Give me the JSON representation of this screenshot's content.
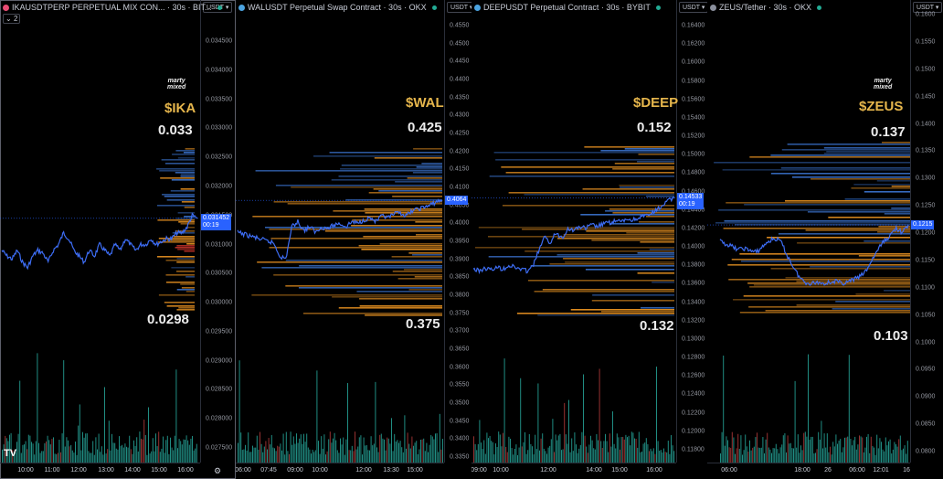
{
  "panels": [
    {
      "title": "IKAUSDTPERP PERPETUAL MIX CON... · 30s · BIT...",
      "icon_color": "#e94b73",
      "unit": "USDT",
      "interval_badge": "2",
      "ticker": "$IKA",
      "high": "0.033",
      "low": "0.0298",
      "price_tag": "0.031452",
      "countdown": "00:19",
      "ticks": [
        "0.034500",
        "0.034000",
        "0.033500",
        "0.033000",
        "0.032500",
        "0.032000",
        "0.031500",
        "0.031000",
        "0.030500",
        "0.030000",
        "0.029500",
        "0.029000",
        "0.028500",
        "0.028000",
        "0.027500"
      ],
      "times": [
        "10:00",
        "11:00",
        "12:00",
        "13:00",
        "14:00",
        "15:00",
        "16:00"
      ],
      "line": [
        0.0309,
        0.0308,
        0.03075,
        0.0309,
        0.0307,
        0.0306,
        0.0308,
        0.0309,
        0.03085,
        0.0307,
        0.0309,
        0.031,
        0.0312,
        0.0311,
        0.0309,
        0.0308,
        0.0307,
        0.0309,
        0.0308,
        0.031,
        0.0309,
        0.0308,
        0.031,
        0.0309,
        0.0311,
        0.031,
        0.0309,
        0.031,
        0.031,
        0.0311,
        0.031,
        0.03105,
        0.0311,
        0.0311,
        0.0312,
        0.0312,
        0.0313,
        0.0315,
        0.03145
      ]
    },
    {
      "title": "WALUSDT Perpetual Swap Contract · 30s · OKX",
      "icon_color": "#4ba3e0",
      "unit": "USDT",
      "ticker": "$WAL",
      "high": "0.425",
      "low": "0.375",
      "price_tag": "0.4064",
      "countdown": "",
      "ticks": [
        "0.4550",
        "0.4500",
        "0.4450",
        "0.4400",
        "0.4350",
        "0.4300",
        "0.4250",
        "0.4200",
        "0.4150",
        "0.4100",
        "0.4050",
        "0.4000",
        "0.3950",
        "0.3900",
        "0.3850",
        "0.3800",
        "0.3750",
        "0.3700",
        "0.3650",
        "0.3600",
        "0.3550",
        "0.3500",
        "0.3450",
        "0.3400",
        "0.3350"
      ],
      "times": [
        "06:00",
        "07:45",
        "09:00",
        "10:00",
        "12:00",
        "13:30",
        "15:00"
      ],
      "line": [
        0.3975,
        0.397,
        0.3965,
        0.396,
        0.3955,
        0.395,
        0.3945,
        0.391,
        0.39,
        0.399,
        0.4005,
        0.398,
        0.399,
        0.3975,
        0.399,
        0.3985,
        0.3995,
        0.4,
        0.399,
        0.4005,
        0.4,
        0.401,
        0.4015,
        0.4005,
        0.402,
        0.4015,
        0.4025,
        0.403,
        0.402,
        0.4035,
        0.404,
        0.4045,
        0.405,
        0.406,
        0.4064
      ]
    },
    {
      "title": "DEEPUSDT Perpetual Contract · 30s · BYBIT",
      "icon_color": "#4ba3e0",
      "unit": "USDT",
      "ticker": "$DEEP",
      "high": "0.152",
      "low": "0.132",
      "price_tag": "0.14533",
      "countdown": "00:19",
      "ticks": [
        "0.16400",
        "0.16200",
        "0.16000",
        "0.15800",
        "0.15600",
        "0.15400",
        "0.15200",
        "0.15000",
        "0.14800",
        "0.14600",
        "0.14400",
        "0.14200",
        "0.14000",
        "0.13800",
        "0.13600",
        "0.13400",
        "0.13200",
        "0.13000",
        "0.12800",
        "0.12600",
        "0.12400",
        "0.12200",
        "0.12000",
        "0.11800"
      ],
      "times": [
        "09:00",
        "10:00",
        "12:00",
        "14:00",
        "15:00",
        "16:00"
      ],
      "line": [
        0.1376,
        0.1374,
        0.1377,
        0.1375,
        0.1378,
        0.1376,
        0.138,
        0.1378,
        0.1376,
        0.1374,
        0.1378,
        0.1395,
        0.141,
        0.1405,
        0.1415,
        0.141,
        0.142,
        0.1418,
        0.1422,
        0.142,
        0.1424,
        0.1422,
        0.1425,
        0.1426,
        0.1428,
        0.1427,
        0.143,
        0.1429,
        0.1432,
        0.1433,
        0.1435,
        0.144,
        0.1445,
        0.145,
        0.14533
      ]
    },
    {
      "title": "ZEUS/Tether · 30s · OKX",
      "icon_color": "#8a8f9c",
      "unit": "USDT",
      "ticker": "$ZEUS",
      "high": "0.137",
      "low": "0.103",
      "price_tag": "0.1215",
      "countdown": "",
      "ticks": [
        "0.1600",
        "0.1550",
        "0.1500",
        "0.1450",
        "0.1400",
        "0.1350",
        "0.1300",
        "0.1250",
        "0.1200",
        "0.1150",
        "0.1100",
        "0.1050",
        "0.1000",
        "0.0950",
        "0.0900",
        "0.0850",
        "0.0800"
      ],
      "times": [
        "06:00",
        "18:00",
        "26",
        "06:00",
        "12:01",
        "16"
      ],
      "line": [
        0.1185,
        0.118,
        0.1175,
        0.117,
        0.1172,
        0.1168,
        0.1165,
        0.1175,
        0.1185,
        0.119,
        0.1185,
        0.116,
        0.114,
        0.112,
        0.111,
        0.1108,
        0.111,
        0.1108,
        0.111,
        0.1112,
        0.1108,
        0.111,
        0.1115,
        0.112,
        0.113,
        0.115,
        0.117,
        0.1185,
        0.1195,
        0.121,
        0.12,
        0.1215
      ]
    }
  ],
  "brand": {
    "logo_top": "marty",
    "logo_bottom": "mixed",
    "tv": "TV"
  },
  "colors": {
    "line": "#3d6df5",
    "volume": "#26a69a",
    "bid": "#f59a23",
    "ask": "#3d78d8",
    "hot": "#e0392f",
    "ticker": "#e6b64c"
  }
}
